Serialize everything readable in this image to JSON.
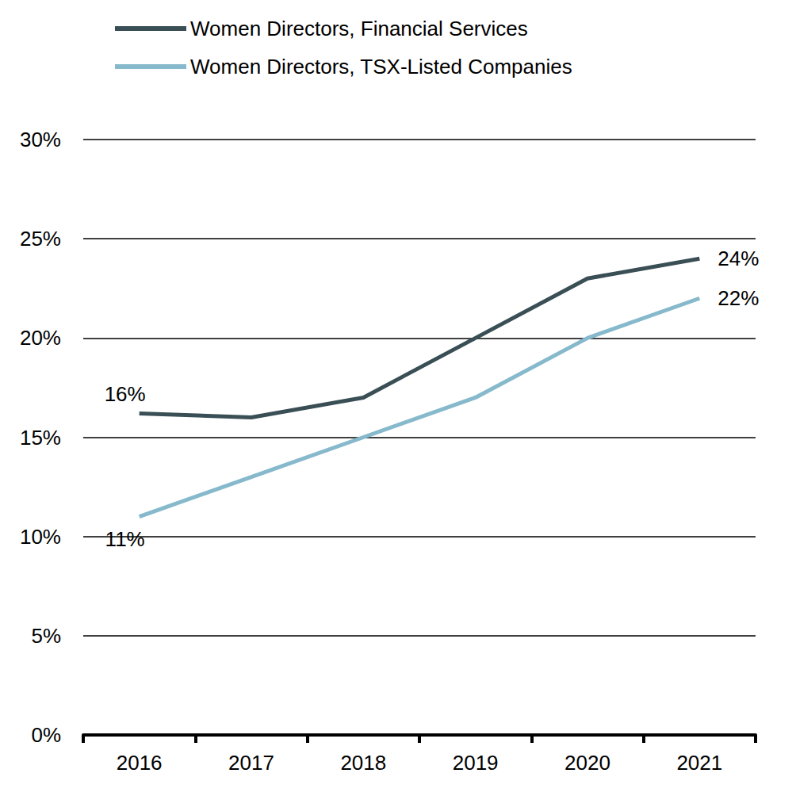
{
  "chart_data": {
    "type": "line",
    "categories": [
      "2016",
      "2017",
      "2018",
      "2019",
      "2020",
      "2021"
    ],
    "series": [
      {
        "name": "Women Directors, Financial Services",
        "color": "#3a4f55",
        "values": [
          16.2,
          16,
          17,
          20,
          23,
          24
        ],
        "value_labels": [
          "16%",
          null,
          null,
          null,
          null,
          "24%"
        ]
      },
      {
        "name": "Women Directors, TSX-Listed Companies",
        "color": "#86b9cc",
        "values": [
          11,
          13,
          15,
          17,
          20,
          22
        ],
        "value_labels": [
          "11%",
          null,
          null,
          null,
          null,
          "22%"
        ]
      }
    ],
    "ylim": [
      0,
      30
    ],
    "yticks": [
      {
        "value": 0,
        "label": "0%"
      },
      {
        "value": 5,
        "label": "5%"
      },
      {
        "value": 10,
        "label": "10%"
      },
      {
        "value": 15,
        "label": "15%"
      },
      {
        "value": 20,
        "label": "20%"
      },
      {
        "value": 25,
        "label": "25%"
      },
      {
        "value": 30,
        "label": "30%"
      }
    ],
    "grid": true,
    "legend": "top-left"
  }
}
